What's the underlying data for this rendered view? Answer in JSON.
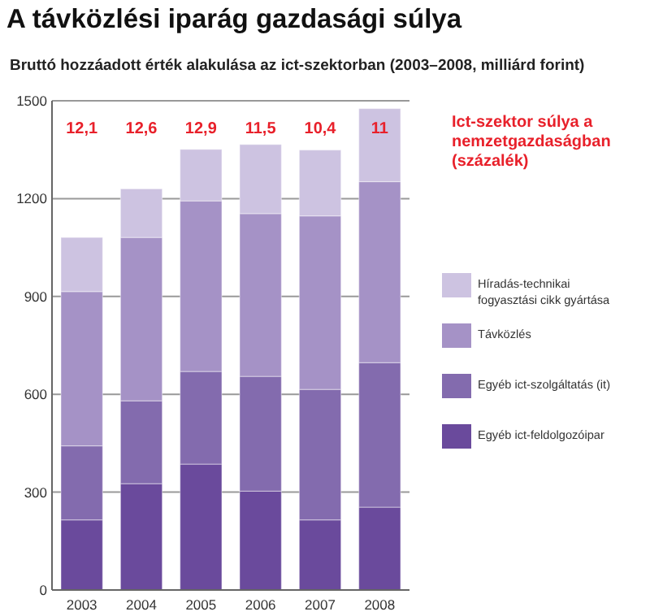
{
  "chart_data": {
    "type": "bar",
    "stacked": true,
    "title": "A távközlési iparág gazdasági súlya",
    "subtitle": "Bruttó hozzáadott érték alakulása az ict-szektorban (2003–2008, milliárd forint)",
    "categories": [
      "2003",
      "2004",
      "2005",
      "2006",
      "2007",
      "2008"
    ],
    "series": [
      {
        "name": "Egyéb ict-feldolgozóipar",
        "color": "#6a4a9c",
        "values": [
          215,
          326,
          386,
          303,
          215,
          254
        ]
      },
      {
        "name": "Egyéb ict-szolgáltatás (it)",
        "color": "#836bae",
        "values": [
          227,
          254,
          284,
          352,
          400,
          443
        ]
      },
      {
        "name": "Távközlés",
        "color": "#a592c6",
        "values": [
          473,
          501,
          523,
          499,
          532,
          555
        ]
      },
      {
        "name": "Híradás-technikai fogyasztási cikk gyártása",
        "color": "#cdc3e1",
        "values": [
          166,
          149,
          158,
          212,
          202,
          224
        ]
      }
    ],
    "ylim": [
      0,
      1500
    ],
    "yticks": [
      0,
      300,
      600,
      900,
      1200,
      1500
    ],
    "grid": "y",
    "legend": "right",
    "annotations": [
      "Ict-szektor súlya a nemzetgazdaságban (százalék)",
      "12,1",
      "12,6",
      "12,9",
      "11,5",
      "10,4",
      "11"
    ]
  }
}
